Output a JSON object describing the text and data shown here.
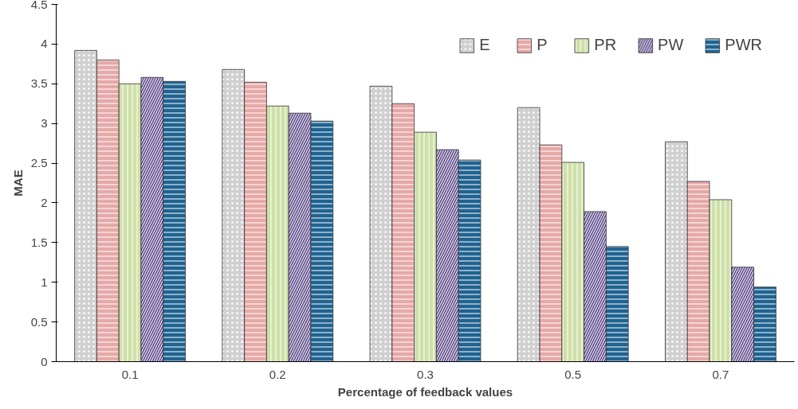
{
  "chart_data": {
    "type": "bar",
    "xlabel": "Percentage of feedback values",
    "ylabel": "MAE",
    "categories": [
      "0.1",
      "0.2",
      "0.3",
      "0.5",
      "0.7"
    ],
    "series": [
      {
        "name": "E",
        "color": "#d0d0d0",
        "values": [
          3.92,
          3.68,
          3.47,
          3.2,
          2.77
        ]
      },
      {
        "name": "P",
        "color": "#e6a9a7",
        "values": [
          3.8,
          3.52,
          3.25,
          2.73,
          2.27
        ]
      },
      {
        "name": "PR",
        "color": "#cfe0a8",
        "values": [
          3.5,
          3.22,
          2.89,
          2.51,
          2.04
        ]
      },
      {
        "name": "PW",
        "color": "#5f4b8b",
        "values": [
          3.58,
          3.13,
          2.67,
          1.89,
          1.19
        ]
      },
      {
        "name": "PWR",
        "color": "#1f6391",
        "values": [
          3.53,
          3.03,
          2.54,
          1.45,
          0.94
        ]
      }
    ],
    "ylim": [
      0,
      4.5
    ],
    "yticks": [
      0,
      0.5,
      1,
      1.5,
      2,
      2.5,
      3,
      3.5,
      4,
      4.5
    ],
    "grid": false,
    "legend": "top right"
  }
}
